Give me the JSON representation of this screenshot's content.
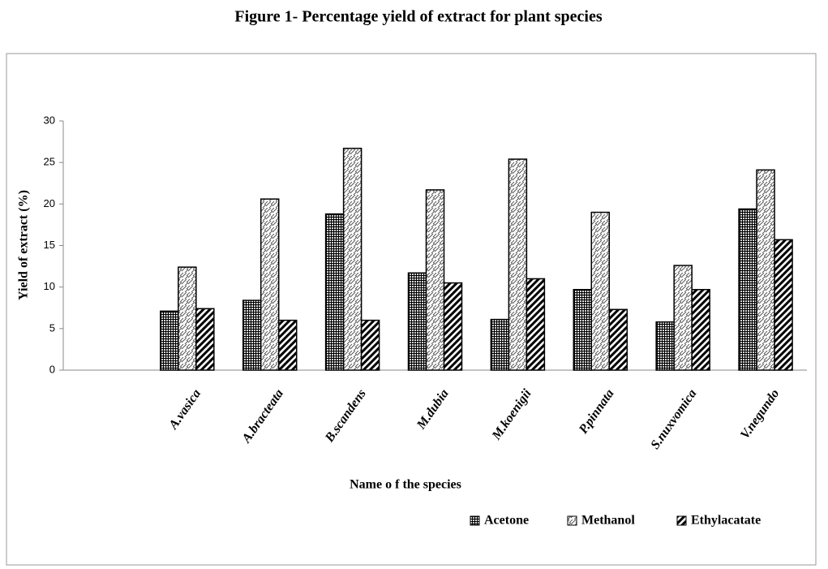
{
  "chart_data": {
    "type": "bar",
    "title": "Figure 1- Percentage yield of extract for plant species",
    "x_label": "Name o f the species",
    "y_label": "Yield of extract (%)",
    "categories": [
      null,
      "A.vasica",
      "A.bracteata",
      "B.scandens",
      "M.dubia",
      "M.koenigii",
      "P.pinnata",
      "S.nuxvomica",
      "V.negundo"
    ],
    "series": [
      {
        "name": "Acetone",
        "color": "#000000",
        "values": [
          null,
          7.1,
          8.4,
          18.8,
          11.7,
          6.1,
          9.7,
          5.8,
          19.4
        ]
      },
      {
        "name": "Methanol",
        "color": "#000000",
        "values": [
          null,
          12.4,
          20.6,
          26.7,
          21.7,
          25.4,
          19.0,
          12.6,
          24.1
        ]
      },
      {
        "name": "Ethylacatate",
        "color": "#000000",
        "values": [
          null,
          7.4,
          6.0,
          6.0,
          10.5,
          11.0,
          7.3,
          9.7,
          15.7
        ]
      }
    ],
    "ylim": [
      0,
      30
    ],
    "yticks": [
      0,
      5,
      10,
      15,
      20,
      25,
      30
    ],
    "grid": false,
    "legend": "bottom"
  }
}
